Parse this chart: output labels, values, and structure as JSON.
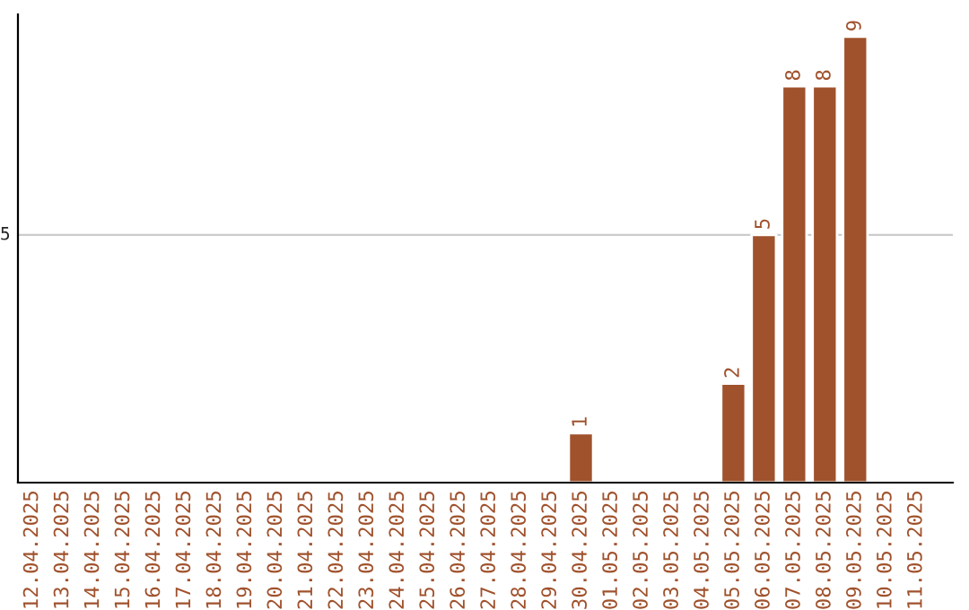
{
  "chart_data": {
    "type": "bar",
    "categories": [
      "12.04.2025",
      "13.04.2025",
      "14.04.2025",
      "15.04.2025",
      "16.04.2025",
      "17.04.2025",
      "18.04.2025",
      "19.04.2025",
      "20.04.2025",
      "21.04.2025",
      "22.04.2025",
      "23.04.2025",
      "24.04.2025",
      "25.04.2025",
      "26.04.2025",
      "27.04.2025",
      "28.04.2025",
      "29.04.2025",
      "30.04.2025",
      "01.05.2025",
      "02.05.2025",
      "03.05.2025",
      "04.05.2025",
      "05.05.2025",
      "06.05.2025",
      "07.05.2025",
      "08.05.2025",
      "09.05.2025",
      "10.05.2025",
      "11.05.2025"
    ],
    "values": [
      null,
      null,
      null,
      null,
      null,
      null,
      null,
      null,
      null,
      null,
      null,
      null,
      null,
      null,
      null,
      null,
      null,
      null,
      1,
      null,
      null,
      null,
      null,
      2,
      5,
      8,
      8,
      9,
      null,
      null
    ],
    "data_labels": true,
    "ylim": [
      0,
      9.45
    ],
    "color": "#a0522d",
    "ref_lines": [
      {
        "axis": "y",
        "value": 5,
        "label": "5",
        "color": "#cccccc"
      }
    ]
  }
}
